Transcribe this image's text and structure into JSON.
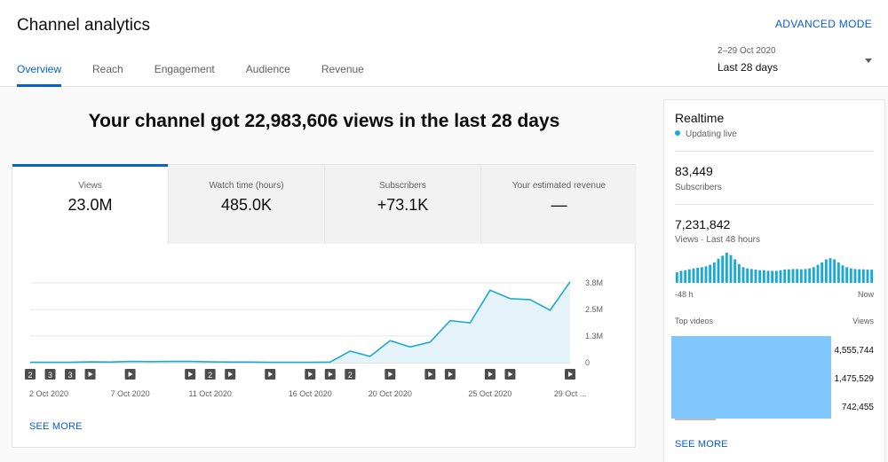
{
  "header": {
    "title": "Channel analytics",
    "advanced_mode": "ADVANCED MODE",
    "tabs": [
      {
        "label": "Overview",
        "active": true
      },
      {
        "label": "Reach",
        "active": false
      },
      {
        "label": "Engagement",
        "active": false
      },
      {
        "label": "Audience",
        "active": false
      },
      {
        "label": "Revenue",
        "active": false
      }
    ],
    "date_range": "2–29 Oct 2020",
    "date_label": "Last 28 days"
  },
  "headline": "Your channel got 22,983,606 views in the last 28 days",
  "metrics": [
    {
      "label": "Views",
      "value": "23.0M",
      "active": true
    },
    {
      "label": "Watch time (hours)",
      "value": "485.0K",
      "active": false
    },
    {
      "label": "Subscribers",
      "value": "+73.1K",
      "active": false
    },
    {
      "label": "Your estimated revenue",
      "value": "—",
      "active": false
    }
  ],
  "main_see_more": "SEE MORE",
  "chart_data": {
    "type": "area",
    "x": [
      "2 Oct",
      "3 Oct",
      "4 Oct",
      "5 Oct",
      "6 Oct",
      "7 Oct",
      "8 Oct",
      "9 Oct",
      "10 Oct",
      "11 Oct",
      "12 Oct",
      "13 Oct",
      "14 Oct",
      "15 Oct",
      "16 Oct",
      "17 Oct",
      "18 Oct",
      "19 Oct",
      "20 Oct",
      "21 Oct",
      "22 Oct",
      "23 Oct",
      "24 Oct",
      "25 Oct",
      "26 Oct",
      "27 Oct",
      "28 Oct",
      "29 Oct"
    ],
    "values": [
      0.02,
      0.02,
      0.02,
      0.04,
      0.03,
      0.06,
      0.05,
      0.06,
      0.06,
      0.04,
      0.03,
      0.03,
      0.02,
      0.02,
      0.02,
      0.03,
      0.55,
      0.3,
      1.05,
      0.75,
      0.98,
      2.0,
      1.9,
      3.45,
      3.05,
      3.0,
      2.5,
      3.85
    ],
    "xtick_labels": [
      "2 Oct 2020",
      "7 Oct 2020",
      "11 Oct 2020",
      "16 Oct 2020",
      "20 Oct 2020",
      "25 Oct 2020",
      "29 Oct ..."
    ],
    "xtick_index": [
      0,
      5,
      9,
      14,
      18,
      23,
      27
    ],
    "ytick_labels": [
      "0",
      "1.3M",
      "2.5M",
      "3.8M"
    ],
    "yticks": [
      0,
      1.27,
      2.53,
      3.8
    ],
    "ylim": [
      0,
      3.8
    ],
    "line_color": "#1ba8d6",
    "fill_color": "#e4f4fa",
    "markers": [
      {
        "index": 0,
        "kind": "number",
        "label": "2"
      },
      {
        "index": 1,
        "kind": "number",
        "label": "3"
      },
      {
        "index": 2,
        "kind": "number",
        "label": "3"
      },
      {
        "index": 3,
        "kind": "play",
        "label": ""
      },
      {
        "index": 5,
        "kind": "play",
        "label": ""
      },
      {
        "index": 8,
        "kind": "play",
        "label": ""
      },
      {
        "index": 9,
        "kind": "number",
        "label": "2"
      },
      {
        "index": 10,
        "kind": "play",
        "label": ""
      },
      {
        "index": 12,
        "kind": "play",
        "label": ""
      },
      {
        "index": 14,
        "kind": "play",
        "label": ""
      },
      {
        "index": 15,
        "kind": "play",
        "label": ""
      },
      {
        "index": 16,
        "kind": "number",
        "label": "2"
      },
      {
        "index": 18,
        "kind": "play",
        "label": ""
      },
      {
        "index": 20,
        "kind": "play",
        "label": ""
      },
      {
        "index": 21,
        "kind": "play",
        "label": ""
      },
      {
        "index": 23,
        "kind": "play",
        "label": ""
      },
      {
        "index": 24,
        "kind": "play",
        "label": ""
      },
      {
        "index": 27,
        "kind": "play",
        "label": ""
      }
    ]
  },
  "realtime": {
    "title": "Realtime",
    "status": "Updating live",
    "subscribers_value": "83,449",
    "subscribers_label": "Subscribers",
    "views_value": "7,231,842",
    "views_label": "Views · Last 48 hours",
    "bar_values": [
      0.35,
      0.4,
      0.42,
      0.45,
      0.48,
      0.5,
      0.52,
      0.55,
      0.6,
      0.68,
      0.8,
      0.9,
      1.0,
      0.92,
      0.78,
      0.62,
      0.52,
      0.48,
      0.46,
      0.44,
      0.42,
      0.42,
      0.4,
      0.4,
      0.4,
      0.42,
      0.44,
      0.45,
      0.46,
      0.46,
      0.45,
      0.46,
      0.48,
      0.52,
      0.6,
      0.68,
      0.78,
      0.82,
      0.78,
      0.68,
      0.58,
      0.52,
      0.48,
      0.46,
      0.45,
      0.45,
      0.44,
      0.44
    ],
    "bar_color": "#1ba8d6",
    "axis_left": "-48 h",
    "axis_right": "Now",
    "top_videos_label": "Top videos",
    "views_col_label": "Views",
    "videos": [
      "4,555,744",
      "1,475,529",
      "742,455"
    ],
    "see_more": "SEE MORE"
  }
}
